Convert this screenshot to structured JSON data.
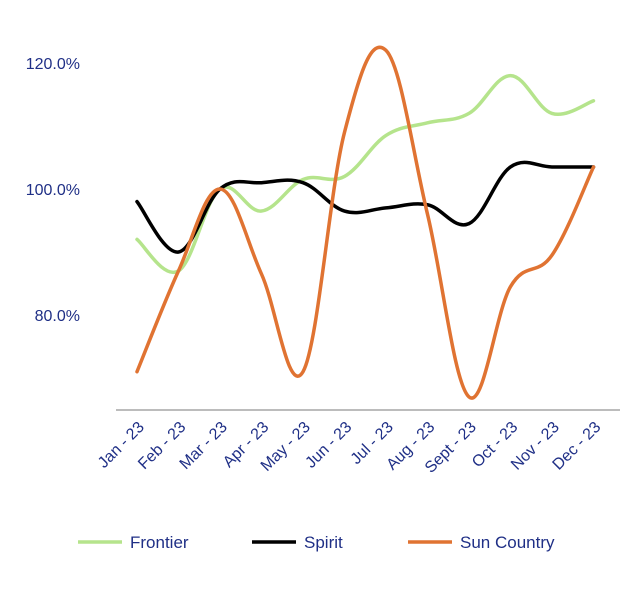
{
  "chart_data": {
    "type": "line",
    "title": "",
    "xlabel": "",
    "ylabel": "",
    "categories": [
      "Jan - 23",
      "Feb - 23",
      "Mar - 23",
      "Apr - 23",
      "May - 23",
      "Jun - 23",
      "Jul - 23",
      "Aug - 23",
      "Sept - 23",
      "Oct - 23",
      "Nov - 23",
      "Dec - 23"
    ],
    "y_ticks": [
      {
        "value": 80,
        "label": "80.0%"
      },
      {
        "value": 100,
        "label": "100.0%"
      },
      {
        "value": 120,
        "label": "120.0%"
      }
    ],
    "ylim": [
      66,
      124
    ],
    "grid": false,
    "legend_position": "bottom",
    "series": [
      {
        "name": "Frontier",
        "color": "#b5e48c",
        "values": [
          92,
          87,
          100,
          96.5,
          101.5,
          102,
          108.5,
          110.5,
          112,
          118,
          112,
          114
        ]
      },
      {
        "name": "Spirit",
        "color": "#000000",
        "values": [
          98,
          90,
          100,
          101,
          101,
          96.5,
          97,
          97.5,
          94.5,
          103.5,
          103.5,
          103.5
        ]
      },
      {
        "name": "Sun Country",
        "color": "#e07332",
        "values": [
          71,
          87,
          100,
          86.5,
          71,
          109,
          122,
          96,
          67,
          84.5,
          89.5,
          103.5
        ]
      }
    ]
  }
}
